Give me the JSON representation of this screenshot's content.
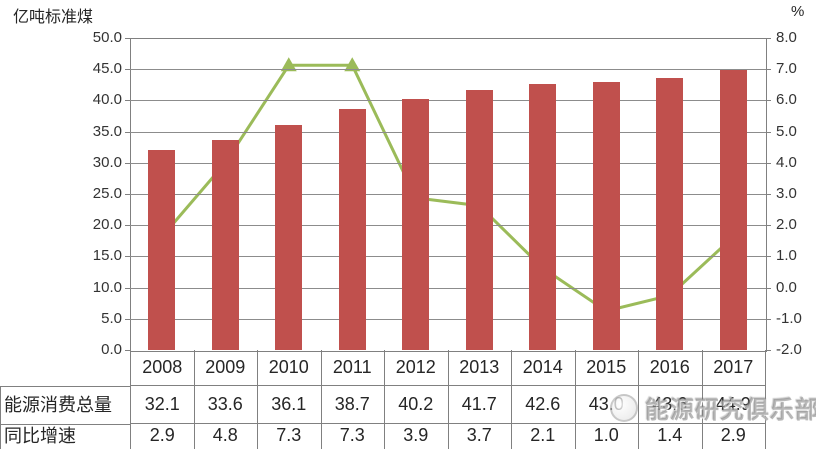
{
  "chart_data": {
    "type": "combo",
    "categories": [
      "2008",
      "2009",
      "2010",
      "2011",
      "2012",
      "2013",
      "2014",
      "2015",
      "2016",
      "2017"
    ],
    "series": [
      {
        "name": "能源消费总量",
        "type": "bar",
        "axis": "left",
        "color": "#C0504D",
        "values": [
          32.1,
          33.6,
          36.1,
          38.7,
          40.2,
          41.7,
          42.6,
          43.0,
          43.6,
          44.9
        ]
      },
      {
        "name": "同比增速",
        "type": "line",
        "axis": "right",
        "color": "#9BBB59",
        "marker": "triangle",
        "values": [
          2.9,
          4.8,
          7.3,
          7.3,
          3.9,
          3.7,
          2.1,
          1.0,
          1.4,
          2.9
        ]
      }
    ],
    "left_axis": {
      "title": "亿吨标准煤",
      "min": 0,
      "max": 50,
      "step": 5
    },
    "right_axis": {
      "title": "%",
      "min": 0,
      "max": 8,
      "step": 1
    },
    "grid": true,
    "legend": "none",
    "data_table_shown": true
  },
  "watermark": {
    "text": "能源研究俱乐部"
  },
  "colors": {
    "bar": "#C0504D",
    "line": "#9BBB59",
    "grid": "#8c8c8c",
    "border": "#808080",
    "text": "#262626"
  }
}
